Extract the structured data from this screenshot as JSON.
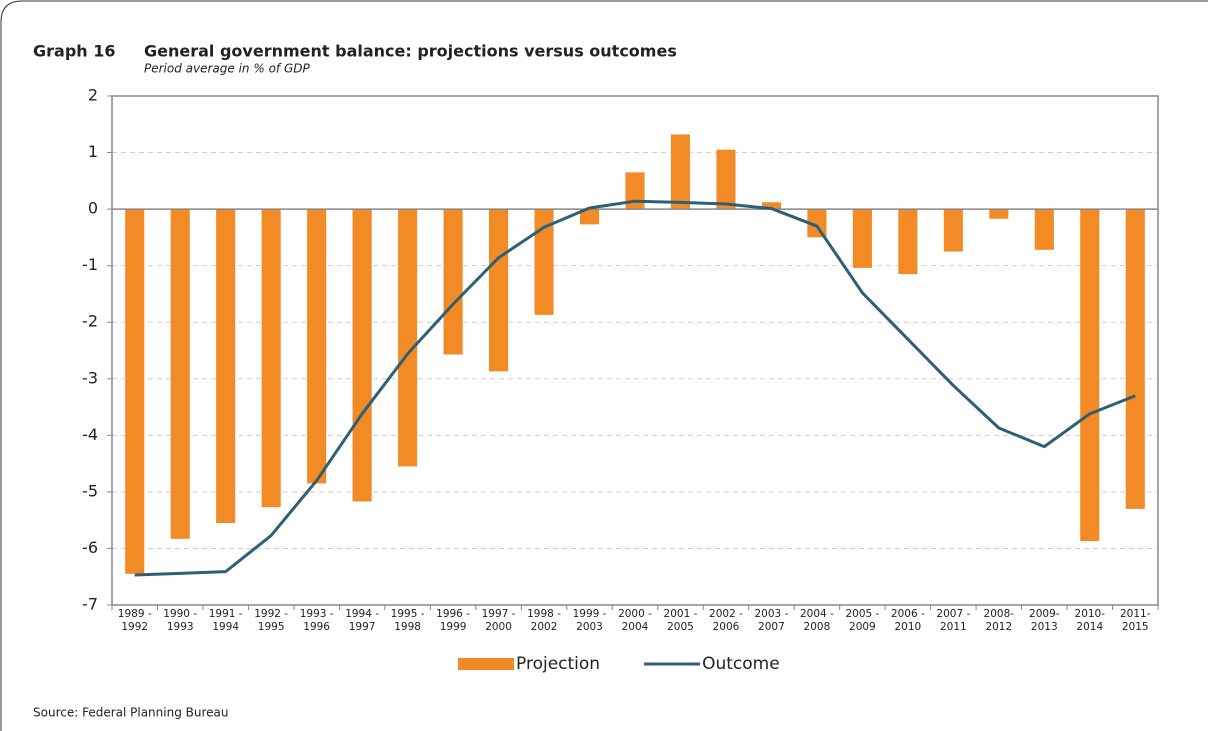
{
  "chart_data": {
    "type": "bar-line",
    "label": "Graph 16",
    "title": "General government balance: projections versus outcomes",
    "subtitle": "Period average in % of GDP",
    "source": "Source: Federal Planning Bureau",
    "categories": [
      "1989 -\n1992",
      "1990 -\n1993",
      "1991 -\n1994",
      "1992 -\n1995",
      "1993 -\n1996",
      "1994 -\n1997",
      "1995 -\n1998",
      "1996 -\n1999",
      "1997 -\n2000",
      "1998 -\n2002",
      "1999 -\n2003",
      "2000 -\n2004",
      "2001 -\n2005",
      "2002 -\n2006",
      "2003 -\n2007",
      "2004 -\n2008",
      "2005 -\n2009",
      "2006 -\n2010",
      "2007 -\n2011",
      "2008-\n2012",
      "2009-\n2013",
      "2010-\n2014",
      "2011-\n2015"
    ],
    "series": [
      {
        "name": "Projection",
        "type": "bar",
        "color": "#f28a26",
        "values": [
          -6.45,
          -5.83,
          -5.55,
          -5.27,
          -4.85,
          -5.17,
          -4.55,
          -2.57,
          -2.87,
          -1.87,
          -0.27,
          0.65,
          1.32,
          1.05,
          0.12,
          -0.5,
          -1.04,
          -1.15,
          -0.75,
          -0.17,
          -0.72,
          -5.87,
          -5.3
        ]
      },
      {
        "name": "Outcome",
        "type": "line",
        "color": "#2e5f73",
        "values": [
          -6.47,
          -6.44,
          -6.41,
          -5.77,
          -4.8,
          -3.62,
          -2.56,
          -1.68,
          -0.86,
          -0.32,
          0.02,
          0.14,
          0.12,
          0.09,
          0.01,
          -0.3,
          -1.48,
          -2.3,
          -3.12,
          -3.87,
          -4.2,
          -3.62,
          -3.3
        ]
      }
    ],
    "ylim": [
      -7,
      2
    ],
    "yticks": [
      -7,
      -6,
      -5,
      -4,
      -3,
      -2,
      -1,
      0,
      1,
      2
    ],
    "grid": true,
    "legend": "bottom"
  }
}
